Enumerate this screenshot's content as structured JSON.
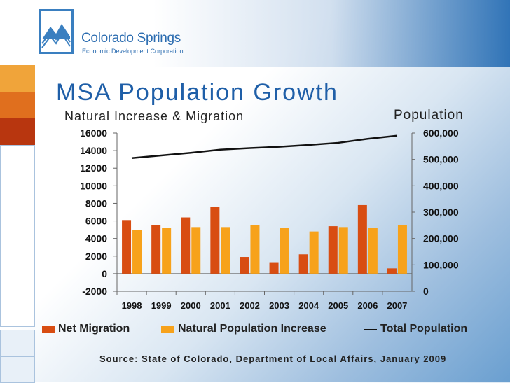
{
  "logo": {
    "name": "Colorado Springs",
    "tagline": "Economic Development Corporation"
  },
  "slide_title": "MSA Population Growth",
  "colors": {
    "net_migration": "#d84d12",
    "natural_increase": "#f7a21b",
    "total_population": "#111111",
    "title": "#1f5fa8"
  },
  "chart_data": {
    "type": "bar",
    "title": "MSA Population Growth",
    "left_axis_label": "Natural Increase & Migration",
    "right_axis_label": "Population",
    "categories": [
      "1998",
      "1999",
      "2000",
      "2001",
      "2002",
      "2003",
      "2004",
      "2005",
      "2006",
      "2007"
    ],
    "series": [
      {
        "name": "Net Migration",
        "type": "bar",
        "axis": "left",
        "values": [
          6100,
          5500,
          6400,
          7600,
          1900,
          1300,
          2200,
          5400,
          7800,
          600
        ]
      },
      {
        "name": "Natural Population Increase",
        "type": "bar",
        "axis": "left",
        "values": [
          5000,
          5200,
          5300,
          5300,
          5500,
          5200,
          4800,
          5300,
          5200,
          5500
        ]
      },
      {
        "name": "Total Population",
        "type": "line",
        "axis": "right",
        "values": [
          505000,
          515000,
          525000,
          537000,
          543000,
          548000,
          555000,
          563000,
          578000,
          590000
        ]
      }
    ],
    "left_ylim": [
      -2000,
      16000
    ],
    "left_ticks": [
      "16000",
      "14000",
      "12000",
      "10000",
      "8000",
      "6000",
      "4000",
      "2000",
      "0",
      "-2000"
    ],
    "left_tick_values": [
      16000,
      14000,
      12000,
      10000,
      8000,
      6000,
      4000,
      2000,
      0,
      -2000
    ],
    "right_ylim": [
      0,
      600000
    ],
    "right_ticks": [
      "600,000",
      "500,000",
      "400,000",
      "300,000",
      "200,000",
      "100,000",
      "0"
    ],
    "right_tick_values": [
      600000,
      500000,
      400000,
      300000,
      200000,
      100000,
      0
    ],
    "legend": [
      "Net Migration",
      "Natural Population Increase",
      "Total Population"
    ],
    "source": "Source:  State of Colorado, Department of Local Affairs, January 2009"
  }
}
